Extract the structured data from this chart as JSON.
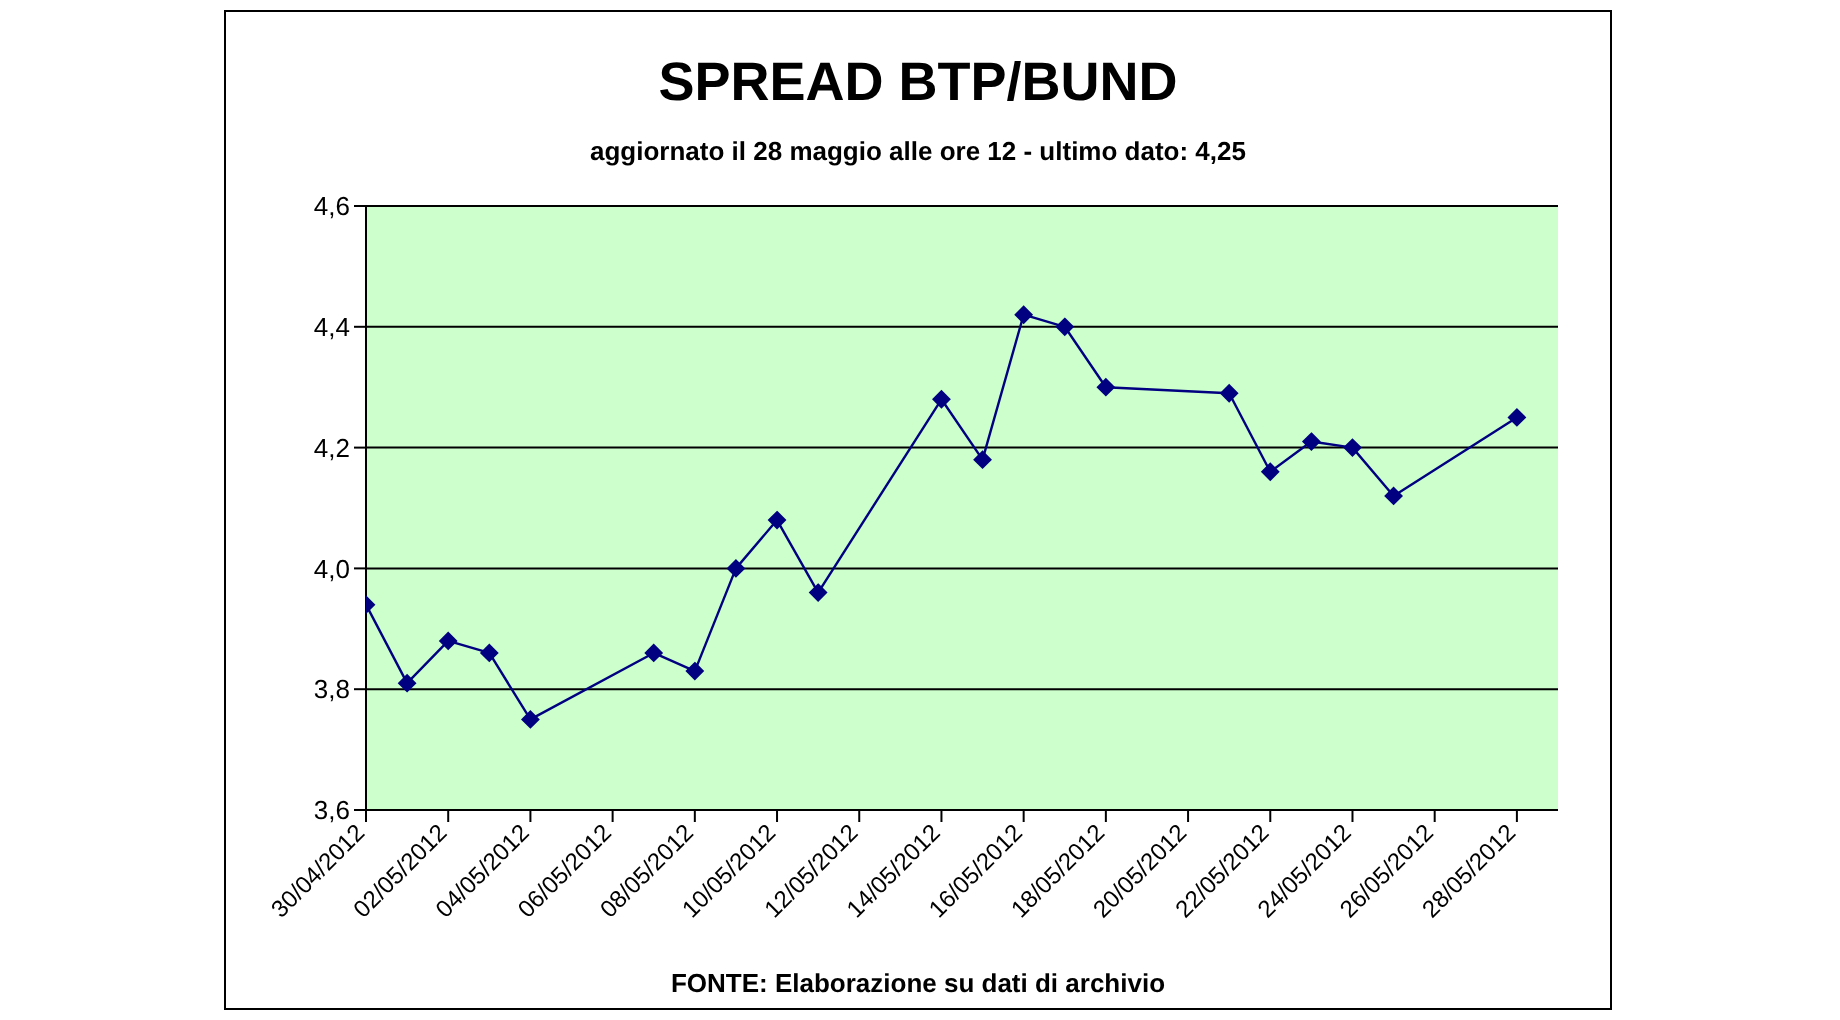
{
  "chart_data": {
    "type": "line",
    "title": "SPREAD BTP/BUND",
    "subtitle": "aggiornato il 28 maggio alle ore 12 - ultimo dato: 4,25",
    "annotations": [
      "FONTE: Elaborazione su dati di archivio"
    ],
    "x": [
      "2012-04-30",
      "2012-05-01",
      "2012-05-02",
      "2012-05-03",
      "2012-05-04",
      "2012-05-07",
      "2012-05-08",
      "2012-05-09",
      "2012-05-10",
      "2012-05-11",
      "2012-05-14",
      "2012-05-15",
      "2012-05-16",
      "2012-05-17",
      "2012-05-18",
      "2012-05-21",
      "2012-05-22",
      "2012-05-23",
      "2012-05-24",
      "2012-05-25",
      "2012-05-28"
    ],
    "series": [
      {
        "color": "#000080",
        "values": [
          3.94,
          3.81,
          3.88,
          3.86,
          3.75,
          3.86,
          3.83,
          4.0,
          4.08,
          3.96,
          4.28,
          4.18,
          4.42,
          4.4,
          4.3,
          4.29,
          4.16,
          4.21,
          4.2,
          4.12,
          4.25
        ]
      }
    ],
    "xlim": [
      "2012-04-30",
      "2012-05-29"
    ],
    "xticks": [
      {
        "value": "2012-04-30",
        "label": "30/04/2012"
      },
      {
        "value": "2012-05-02",
        "label": "02/05/2012"
      },
      {
        "value": "2012-05-04",
        "label": "04/05/2012"
      },
      {
        "value": "2012-05-06",
        "label": "06/05/2012"
      },
      {
        "value": "2012-05-08",
        "label": "08/05/2012"
      },
      {
        "value": "2012-05-10",
        "label": "10/05/2012"
      },
      {
        "value": "2012-05-12",
        "label": "12/05/2012"
      },
      {
        "value": "2012-05-14",
        "label": "14/05/2012"
      },
      {
        "value": "2012-05-16",
        "label": "16/05/2012"
      },
      {
        "value": "2012-05-18",
        "label": "18/05/2012"
      },
      {
        "value": "2012-05-20",
        "label": "20/05/2012"
      },
      {
        "value": "2012-05-22",
        "label": "22/05/2012"
      },
      {
        "value": "2012-05-24",
        "label": "24/05/2012"
      },
      {
        "value": "2012-05-26",
        "label": "26/05/2012"
      },
      {
        "value": "2012-05-28",
        "label": "28/05/2012"
      }
    ],
    "ylim": [
      3.6,
      4.6
    ],
    "yticks": [
      {
        "value": 3.6,
        "label": "3,6"
      },
      {
        "value": 3.8,
        "label": "3,8"
      },
      {
        "value": 4.0,
        "label": "4,0"
      },
      {
        "value": 4.2,
        "label": "4,2"
      },
      {
        "value": 4.4,
        "label": "4,4"
      },
      {
        "value": 4.6,
        "label": "4,6"
      }
    ],
    "grid": "y",
    "marker": "diamond",
    "line_style": "solid"
  }
}
